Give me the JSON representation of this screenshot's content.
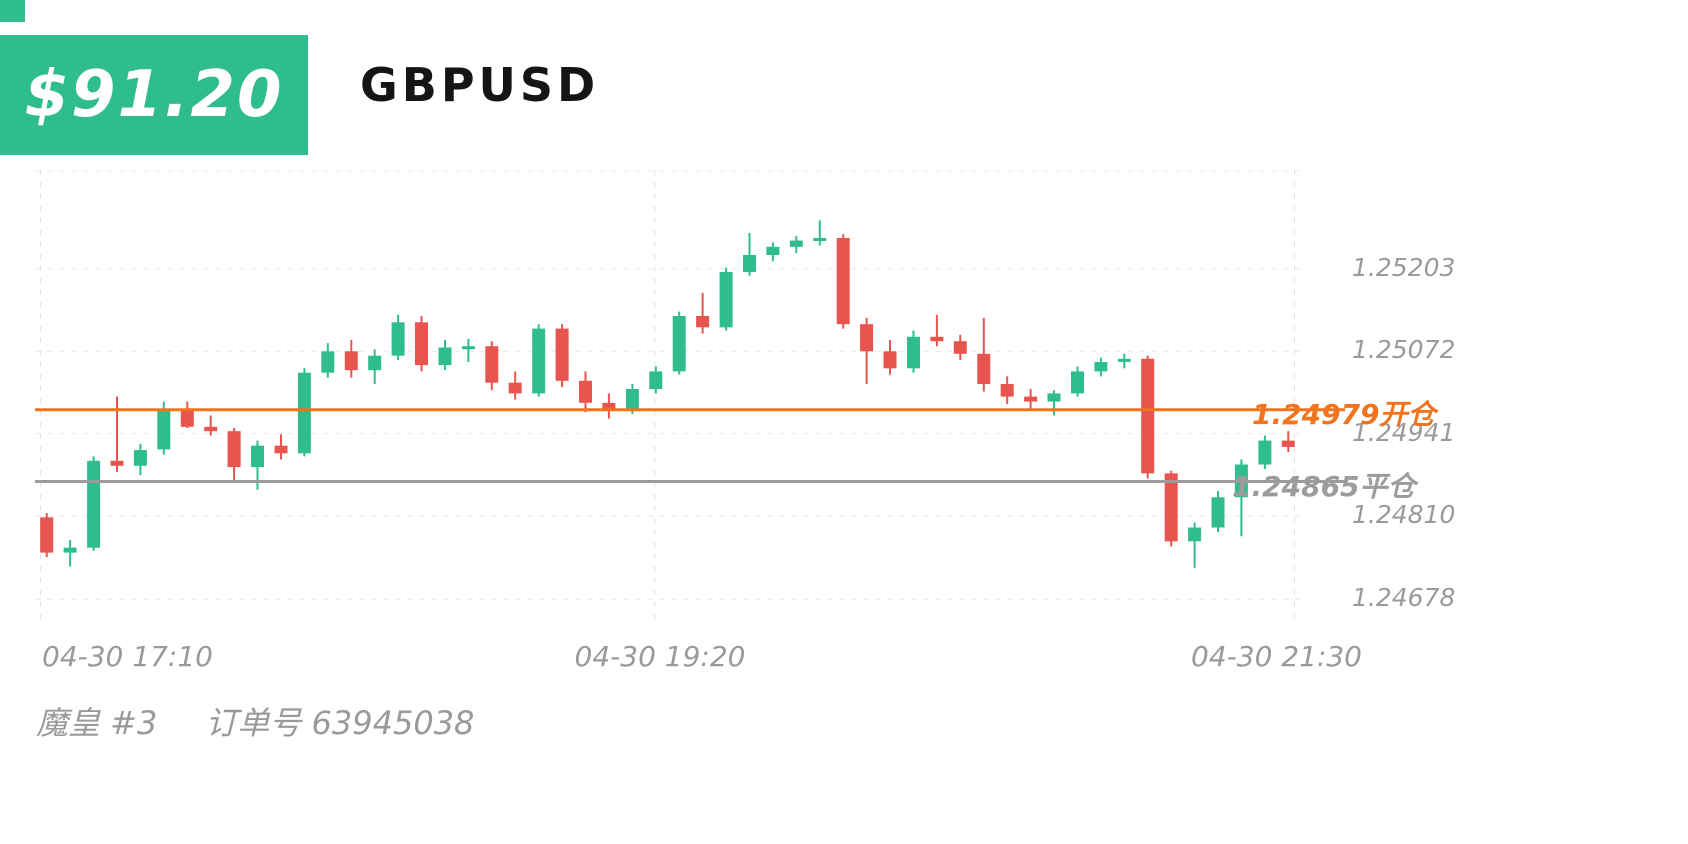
{
  "badge": {
    "amount": "$91.20",
    "color": "#2fbd8f"
  },
  "header": {
    "symbol": "GBPUSD"
  },
  "footer": {
    "strategy": "魔皇 #3",
    "order": "订单号 63945038"
  },
  "colors": {
    "up": "#2fbd8f",
    "down": "#e8544e",
    "open_line": "#f0741e",
    "close_line": "#9c9c9c",
    "axis_text": "#9a9a9a"
  },
  "chart_data": {
    "type": "candlestick",
    "symbol": "GBPUSD",
    "interval_minutes": 5,
    "x_tick_labels": [
      "04-30 17:10",
      "04-30 19:20",
      "04-30 21:30"
    ],
    "y_tick_labels": [
      "1.25203",
      "1.25072",
      "1.24941",
      "1.24810",
      "1.24678"
    ],
    "y_ticks": [
      1.25203,
      1.25072,
      1.24941,
      1.2481,
      1.24678
    ],
    "ylim": [
      1.24645,
      1.2536
    ],
    "open_line": {
      "price": 1.24979,
      "label": "1.24979开仓"
    },
    "close_line": {
      "price": 1.24865,
      "label": "1.24865平仓"
    },
    "candles_ohlc": [
      [
        1.24808,
        1.24815,
        1.24745,
        1.24752
      ],
      [
        1.24752,
        1.24772,
        1.2473,
        1.2476
      ],
      [
        1.2476,
        1.24905,
        1.24755,
        1.24898
      ],
      [
        1.24898,
        1.25,
        1.2488,
        1.2489
      ],
      [
        1.2489,
        1.24925,
        1.24875,
        1.24915
      ],
      [
        1.24916,
        1.24992,
        1.24908,
        1.24978
      ],
      [
        1.24978,
        1.24992,
        1.2495,
        1.24952
      ],
      [
        1.24952,
        1.2497,
        1.24938,
        1.24945
      ],
      [
        1.24945,
        1.2495,
        1.24865,
        1.24888
      ],
      [
        1.24888,
        1.2493,
        1.24852,
        1.24922
      ],
      [
        1.24922,
        1.2494,
        1.249,
        1.2491
      ],
      [
        1.2491,
        1.25045,
        1.24905,
        1.25038
      ],
      [
        1.25038,
        1.25085,
        1.2503,
        1.25072
      ],
      [
        1.25072,
        1.2509,
        1.2503,
        1.25042
      ],
      [
        1.25042,
        1.25075,
        1.2502,
        1.25065
      ],
      [
        1.25065,
        1.2513,
        1.25058,
        1.25118
      ],
      [
        1.25118,
        1.25128,
        1.2504,
        1.2505
      ],
      [
        1.2505,
        1.2509,
        1.25042,
        1.25078
      ],
      [
        1.25078,
        1.25092,
        1.25055,
        1.2508
      ],
      [
        1.2508,
        1.25088,
        1.2501,
        1.25022
      ],
      [
        1.25022,
        1.2504,
        1.24995,
        1.25005
      ],
      [
        1.25005,
        1.25115,
        1.25,
        1.25108
      ],
      [
        1.25108,
        1.25115,
        1.25015,
        1.25025
      ],
      [
        1.25025,
        1.2504,
        1.24975,
        1.2499
      ],
      [
        1.2499,
        1.25005,
        1.24965,
        1.2498
      ],
      [
        1.2498,
        1.2502,
        1.24972,
        1.25012
      ],
      [
        1.25012,
        1.25048,
        1.25005,
        1.2504
      ],
      [
        1.2504,
        1.25135,
        1.25035,
        1.25128
      ],
      [
        1.25128,
        1.25165,
        1.251,
        1.2511
      ],
      [
        1.2511,
        1.25205,
        1.25105,
        1.25198
      ],
      [
        1.25198,
        1.2526,
        1.25192,
        1.25225
      ],
      [
        1.25225,
        1.25245,
        1.25215,
        1.25238
      ],
      [
        1.25238,
        1.25255,
        1.25228,
        1.25248
      ],
      [
        1.25248,
        1.2528,
        1.2524,
        1.25252
      ],
      [
        1.25252,
        1.25258,
        1.25108,
        1.25115
      ],
      [
        1.25115,
        1.25125,
        1.2502,
        1.25072
      ],
      [
        1.25072,
        1.2509,
        1.25035,
        1.25045
      ],
      [
        1.25045,
        1.25105,
        1.25038,
        1.25095
      ],
      [
        1.25095,
        1.2513,
        1.2508,
        1.25088
      ],
      [
        1.25088,
        1.25098,
        1.25058,
        1.25068
      ],
      [
        1.25068,
        1.25125,
        1.25008,
        1.2502
      ],
      [
        1.2502,
        1.25032,
        1.24988,
        1.25
      ],
      [
        1.25,
        1.25012,
        1.2498,
        1.24992
      ],
      [
        1.24992,
        1.2501,
        1.2497,
        1.25005
      ],
      [
        1.25005,
        1.25048,
        1.25,
        1.2504
      ],
      [
        1.2504,
        1.25062,
        1.25032,
        1.25055
      ],
      [
        1.25055,
        1.25068,
        1.25045,
        1.2506
      ],
      [
        1.2506,
        1.25065,
        1.2487,
        1.24878
      ],
      [
        1.24878,
        1.24882,
        1.24762,
        1.2477
      ],
      [
        1.2477,
        1.248,
        1.24728,
        1.24792
      ],
      [
        1.24792,
        1.2485,
        1.24785,
        1.2484
      ],
      [
        1.2484,
        1.249,
        1.24778,
        1.24892
      ],
      [
        1.24892,
        1.24938,
        1.24885,
        1.2493
      ],
      [
        1.2493,
        1.24945,
        1.24912,
        1.2492
      ]
    ]
  }
}
